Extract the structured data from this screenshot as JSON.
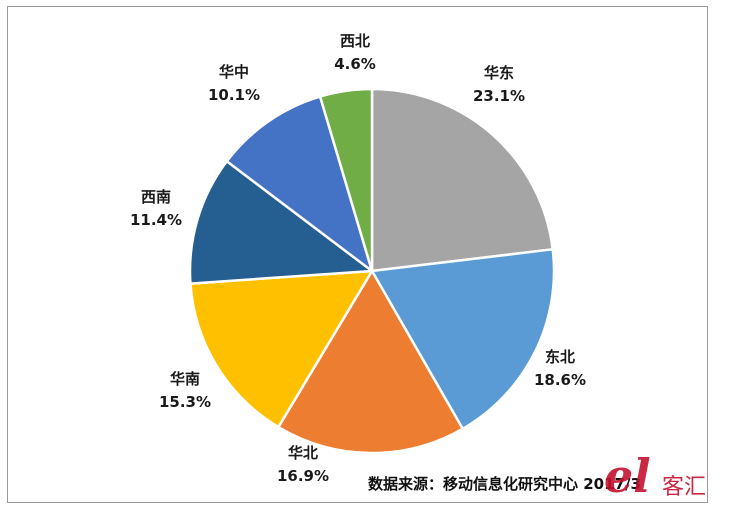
{
  "chart_data": {
    "type": "pie",
    "start_angle_deg": 0,
    "direction": "clockwise",
    "slices": [
      {
        "label": "华东",
        "value": 23.1,
        "display": "23.1%",
        "color": "#a5a5a5"
      },
      {
        "label": "东北",
        "value": 18.6,
        "display": "18.6%",
        "color": "#5b9bd5"
      },
      {
        "label": "华北",
        "value": 16.9,
        "display": "16.9%",
        "color": "#ed7d31"
      },
      {
        "label": "华南",
        "value": 15.3,
        "display": "15.3%",
        "color": "#ffc000"
      },
      {
        "label": "西南",
        "value": 11.4,
        "display": "11.4%",
        "color": "#255e91"
      },
      {
        "label": "华中",
        "value": 10.1,
        "display": "10.1%",
        "color": "#4472c4"
      },
      {
        "label": "西北",
        "value": 4.6,
        "display": "4.6%",
        "color": "#70ad47"
      }
    ],
    "labels_outside": true
  },
  "source": "数据来源：移动信息化研究中心 2017/3",
  "watermark": {
    "logo_text": "el",
    "text": "客汇"
  }
}
